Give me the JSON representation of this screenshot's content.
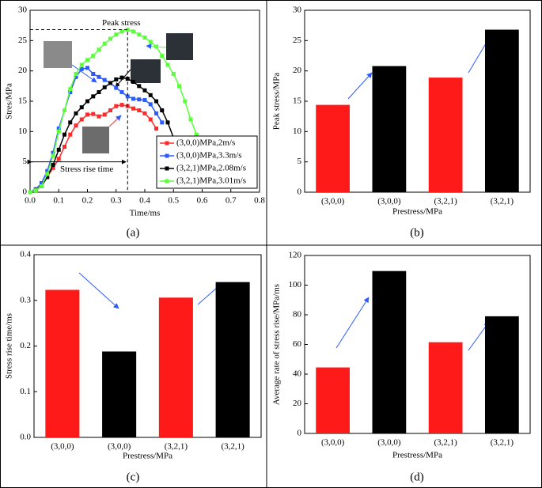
{
  "chart_data": [
    {
      "type": "line",
      "panel_label": "(a)",
      "xlabel": "Time/ms",
      "ylabel": "Stres/MPa",
      "annotations": [
        "Peak stress",
        "Stress rise time"
      ],
      "x": [
        0,
        0.02,
        0.04,
        0.06,
        0.08,
        0.1,
        0.12,
        0.14,
        0.16,
        0.18,
        0.2,
        0.22,
        0.24,
        0.26,
        0.28,
        0.3,
        0.32,
        0.34,
        0.36,
        0.38,
        0.4,
        0.42,
        0.44,
        0.46,
        0.48,
        0.5,
        0.52,
        0.54,
        0.56,
        0.58
      ],
      "xlim": [
        0,
        0.8
      ],
      "xticks": [
        {
          "value": 0,
          "label": "0.0"
        },
        0.1,
        0.2,
        0.3,
        0.4,
        0.5,
        0.6,
        0.7,
        0.8
      ],
      "ylim": [
        0,
        30
      ],
      "yticks": [
        0,
        5,
        10,
        15,
        20,
        25,
        30
      ],
      "series": [
        {
          "name": "(3,0,0)MPa,2m/s",
          "color": "#ff2a2a",
          "values": [
            0,
            0.5,
            1.2,
            2.5,
            4,
            5.5,
            7.5,
            9.5,
            11,
            12,
            12.8,
            12.9,
            12.5,
            12.8,
            13.5,
            14.2,
            14.4,
            14.2,
            13.8,
            13.5,
            13,
            12,
            10.5,
            null,
            null,
            null,
            null,
            null,
            null,
            null
          ]
        },
        {
          "name": "(3,0,0)MPa,3.3m/s",
          "color": "#2a5bff",
          "values": [
            0,
            0.5,
            1.5,
            3.5,
            6.5,
            10.5,
            13.5,
            16.5,
            19,
            20.3,
            20.5,
            19.5,
            19,
            18.5,
            18,
            17.2,
            16.5,
            15.8,
            15.4,
            15.3,
            15.2,
            14.5,
            13,
            11.5,
            null,
            null,
            null,
            null,
            null,
            null
          ]
        },
        {
          "name": "(3,2,1)MPa,2.08m/s",
          "color": "#000000",
          "values": [
            0,
            0.3,
            1,
            2.5,
            4.5,
            7,
            9.5,
            11.5,
            13,
            14,
            15,
            15.8,
            16.5,
            17.3,
            18,
            18.6,
            18.9,
            18.7,
            18.2,
            17.5,
            16.8,
            16,
            15,
            13.5,
            11.5,
            9,
            6.5,
            null,
            null,
            null
          ]
        },
        {
          "name": "(3,2,1)MPa,3.01m/s",
          "color": "#5aff3a",
          "values": [
            0,
            0.3,
            1,
            3,
            6,
            10,
            13.5,
            17,
            19.5,
            21,
            21.8,
            22.5,
            23.5,
            24.5,
            25.3,
            26,
            26.5,
            26.8,
            26.5,
            26,
            25.5,
            24.8,
            24,
            22.5,
            21,
            19.5,
            17.5,
            15,
            12,
            9.5
          ]
        }
      ]
    },
    {
      "type": "bar",
      "panel_label": "(b)",
      "xlabel": "Prestress/MPa",
      "ylabel": "Peak stress/MPa",
      "categories": [
        "(3,0,0)",
        "(3,0,0)",
        "(3,2,1)",
        "(3,2,1)"
      ],
      "values": [
        14.4,
        20.8,
        18.9,
        26.8
      ],
      "colors": [
        "#ff1a1a",
        "#000000",
        "#ff1a1a",
        "#000000"
      ],
      "ylim": [
        0,
        30
      ],
      "yticks": [
        0,
        5,
        10,
        15,
        20,
        25,
        30
      ]
    },
    {
      "type": "bar",
      "panel_label": "(c)",
      "xlabel": "Prestress/MPa",
      "ylabel": "Stress rise time/ms",
      "categories": [
        "(3,0,0)",
        "(3,0,0)",
        "(3,2,1)",
        "(3,2,1)"
      ],
      "values": [
        0.323,
        0.188,
        0.306,
        0.34
      ],
      "colors": [
        "#ff1a1a",
        "#000000",
        "#ff1a1a",
        "#000000"
      ],
      "ylim": [
        0,
        0.4
      ],
      "yticks": [
        {
          "value": 0,
          "label": "0.0"
        },
        0.1,
        0.2,
        0.3,
        0.4
      ]
    },
    {
      "type": "bar",
      "panel_label": "(d)",
      "xlabel": "Prestress/MPa",
      "ylabel": "Average rate of stress rise/MPa/ms",
      "categories": [
        "(3,0,0)",
        "(3,0,0)",
        "(3,2,1)",
        "(3,2,1)"
      ],
      "values": [
        44.5,
        109.5,
        61.5,
        79
      ],
      "colors": [
        "#ff1a1a",
        "#000000",
        "#ff1a1a",
        "#000000"
      ],
      "ylim": [
        0,
        120
      ],
      "yticks": [
        0,
        20,
        40,
        60,
        80,
        100,
        120
      ]
    }
  ]
}
